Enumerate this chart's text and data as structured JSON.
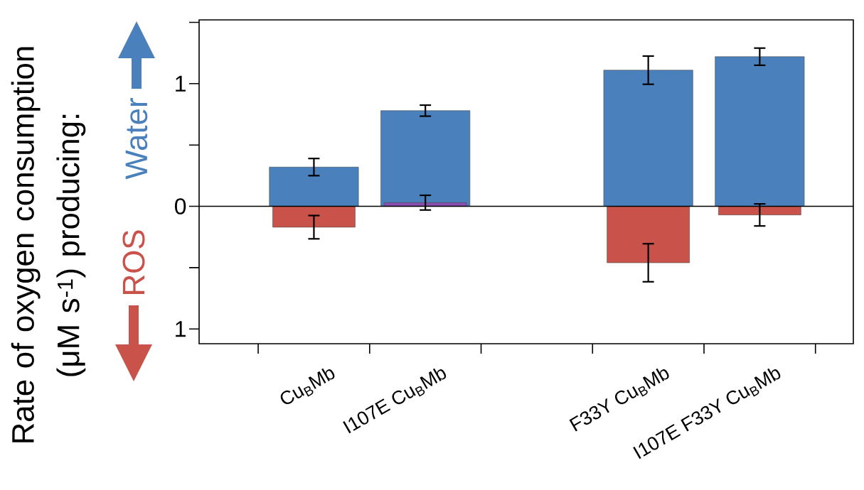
{
  "chart_data": {
    "type": "bar",
    "ylabel": "Rate of oxygen consumption (μM s$^{-1}$) producing:",
    "categories": [
      "Cu$_{B}$Mb",
      "I107E Cu$_{B}$Mb",
      null,
      "F33Y Cu$_{B}$Mb",
      "I107E F33Y Cu$_{B}$Mb"
    ],
    "series": [
      {
        "name": "Water",
        "color": "#4a81bd",
        "values": [
          0.32,
          0.78,
          null,
          1.11,
          1.22
        ],
        "errors": [
          0.07,
          0.045,
          null,
          0.115,
          0.07
        ]
      },
      {
        "name": "ROS",
        "color": "#c9524a",
        "colors": [
          "#c9524a",
          "#8a4fb0",
          "#c9524a",
          "#c9524a",
          "#c9524a"
        ],
        "values": [
          -0.17,
          0.03,
          null,
          -0.46,
          -0.07
        ],
        "errors": [
          0.095,
          0.06,
          null,
          0.155,
          0.09
        ]
      }
    ],
    "ylim": [
      -1.12,
      1.52
    ],
    "yticks": [
      {
        "value": -1,
        "label": "1"
      },
      {
        "value": -0.5,
        "label": null
      },
      0,
      {
        "value": 0.5,
        "label": null
      },
      1,
      {
        "value": 1.5,
        "label": null
      }
    ],
    "ref_lines": [
      {
        "axis": "y",
        "value": 0
      }
    ]
  }
}
